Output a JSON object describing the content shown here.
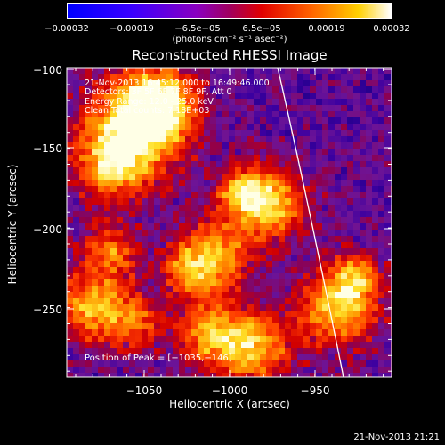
{
  "colorbar": {
    "ticks": [
      "−0.00032",
      "−0.00019",
      "−6.5e−05",
      "6.5e−05",
      "0.00019",
      "0.00032"
    ],
    "units": "(photons cm⁻² s⁻¹ asec⁻²)"
  },
  "image": {
    "title": "Reconstructed RHESSI Image",
    "annotation": {
      "time": "21-Nov-2013 16:45:12.000 to 16:49:46.000",
      "detectors": "Detectors: 3F 5F 6F 7F 8F 9F, Att 0",
      "energy": "Energy Range: 12.0 - 25.0 keV",
      "algorithm": "Clean     Total counts: 7.18E+03"
    },
    "peak": "Position of Peak = [−1035,−146]",
    "xlabel": "Heliocentric X (arcsec)",
    "ylabel": "Heliocentric Y (arcsec)",
    "x_ticks": [
      "−1050",
      "−1000",
      "−950"
    ],
    "y_ticks": [
      "−100",
      "−150",
      "−200",
      "−250"
    ],
    "x_range": [
      -1100,
      -910
    ],
    "y_range": [
      -290,
      -97
    ],
    "limb_color": "#ffffff"
  },
  "footer": {
    "timestamp": "21-Nov-2013 21:21"
  }
}
